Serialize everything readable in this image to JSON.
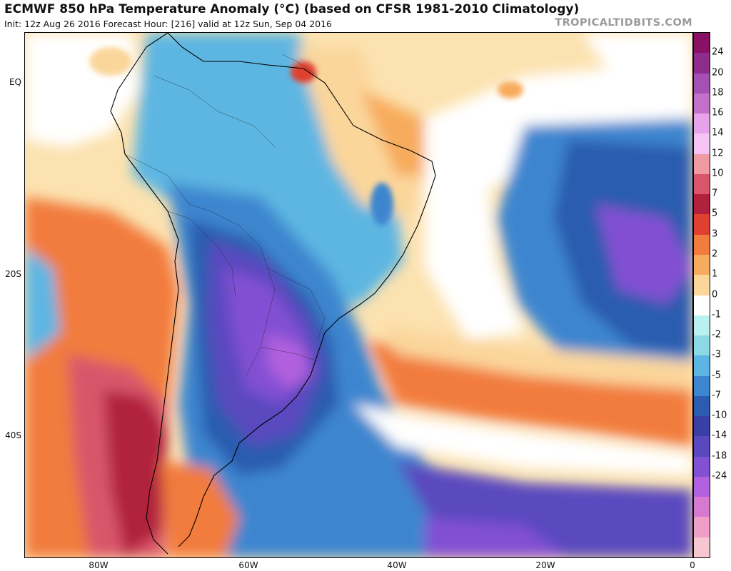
{
  "title": "ECMWF 850 hPa Temperature Anomaly (°C) (based on CFSR 1981-2010 Climatology)",
  "subtitle": "Init: 12z Aug 26 2016   Forecast Hour: [216]   valid at 12z Sun, Sep 04 2016",
  "brand": "TROPICALTIDBITS.COM",
  "axes": {
    "lat_labels": [
      "EQ",
      "20S",
      "40S"
    ],
    "lon_labels": [
      "80W",
      "60W",
      "40W",
      "20W",
      "0"
    ]
  },
  "colorbar": {
    "labels": [
      "24",
      "20",
      "18",
      "16",
      "14",
      "12",
      "10",
      "7",
      "5",
      "3",
      "2",
      "1",
      "0",
      "-1",
      "-2",
      "-3",
      "-5",
      "-7",
      "-10",
      "-14",
      "-18",
      "-24"
    ],
    "colors": [
      "#8a1066",
      "#8d2c8d",
      "#a550b5",
      "#c270c8",
      "#e7a3ea",
      "#f5c4f5",
      "#f09aa4",
      "#d9566b",
      "#b1203c",
      "#e0402f",
      "#f27b3e",
      "#f7ab5c",
      "#fbd69b",
      "#ffffff",
      "#b8f1ef",
      "#8cd9e6",
      "#5db6e2",
      "#3c86cf",
      "#2c5caf",
      "#3a3fa7",
      "#5a48bf",
      "#8250d3",
      "#b160de",
      "#d779d0",
      "#ef9ec8",
      "#f7c7d1"
    ]
  }
}
